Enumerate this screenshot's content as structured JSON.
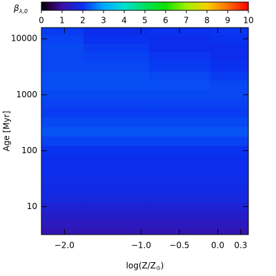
{
  "chart_data": {
    "type": "heatmap",
    "colorbar_label": "β",
    "colorbar_label_sub": "λ,0",
    "xlabel": [
      "log(Z/Z",
      "⊙",
      ")"
    ],
    "ylabel": "Age [Myr]",
    "log_y": true,
    "x": [
      -2.2,
      -1.3,
      -0.5,
      0.3
    ],
    "y": [
      3.5,
      5,
      7,
      10,
      14,
      20,
      30,
      45,
      65,
      100,
      150,
      220,
      320,
      500,
      700,
      1000,
      1500,
      2200,
      3200,
      5000,
      7000,
      10000,
      14000
    ],
    "z": [
      [
        1.15,
        1.15,
        1.15,
        1.15
      ],
      [
        1.3,
        1.3,
        1.3,
        1.3
      ],
      [
        1.45,
        1.45,
        1.45,
        1.45
      ],
      [
        1.6,
        1.6,
        1.6,
        1.6
      ],
      [
        1.75,
        1.75,
        1.75,
        1.75
      ],
      [
        1.85,
        1.85,
        1.85,
        1.85
      ],
      [
        1.9,
        1.9,
        1.9,
        1.9
      ],
      [
        1.95,
        1.95,
        1.95,
        1.95
      ],
      [
        1.95,
        1.95,
        1.95,
        1.95
      ],
      [
        2.0,
        2.0,
        2.0,
        2.0
      ],
      [
        2.15,
        2.15,
        2.15,
        2.15
      ],
      [
        2.3,
        2.3,
        2.3,
        2.3
      ],
      [
        2.2,
        2.2,
        2.2,
        2.2
      ],
      [
        2.1,
        2.1,
        2.1,
        2.1
      ],
      [
        2.15,
        2.15,
        2.15,
        2.15
      ],
      [
        2.2,
        2.2,
        2.2,
        2.2
      ],
      [
        2.25,
        2.25,
        2.25,
        2.2
      ],
      [
        2.25,
        2.25,
        2.2,
        2.1
      ],
      [
        2.2,
        2.2,
        2.1,
        2.0
      ],
      [
        2.2,
        2.15,
        2.05,
        1.95
      ],
      [
        2.2,
        2.1,
        1.95,
        1.95
      ],
      [
        2.15,
        2.0,
        1.95,
        2.0
      ],
      [
        2.1,
        1.95,
        2.0,
        2.05
      ]
    ],
    "xlim": [
      -2.3,
      0.4
    ],
    "ylim": [
      3.16,
      15849
    ],
    "xticks": [
      {
        "value": -2,
        "label": "−2.0"
      },
      {
        "value": -1,
        "label": "−1.0"
      },
      {
        "value": -0.5,
        "label": "−0.5"
      },
      {
        "value": 0,
        "label": "0.0"
      },
      0.3
    ],
    "yticks": [
      10,
      100,
      1000,
      10000
    ],
    "clim": [
      0,
      10
    ],
    "cticks": [
      0,
      1,
      2,
      3,
      4,
      5,
      6,
      7,
      8,
      9,
      10
    ],
    "colorscale": [
      [
        0,
        "#000000"
      ],
      [
        0.5,
        "#300050"
      ],
      [
        1,
        "#3a10a8"
      ],
      [
        2,
        "#0a30f0"
      ],
      [
        3,
        "#00a8ff"
      ],
      [
        4,
        "#00e0d0"
      ],
      [
        5,
        "#00e060"
      ],
      [
        6,
        "#10e000"
      ],
      [
        7,
        "#a0f000"
      ],
      [
        8,
        "#f8d000"
      ],
      [
        9,
        "#ff7000"
      ],
      [
        10,
        "#ff0000"
      ]
    ]
  }
}
